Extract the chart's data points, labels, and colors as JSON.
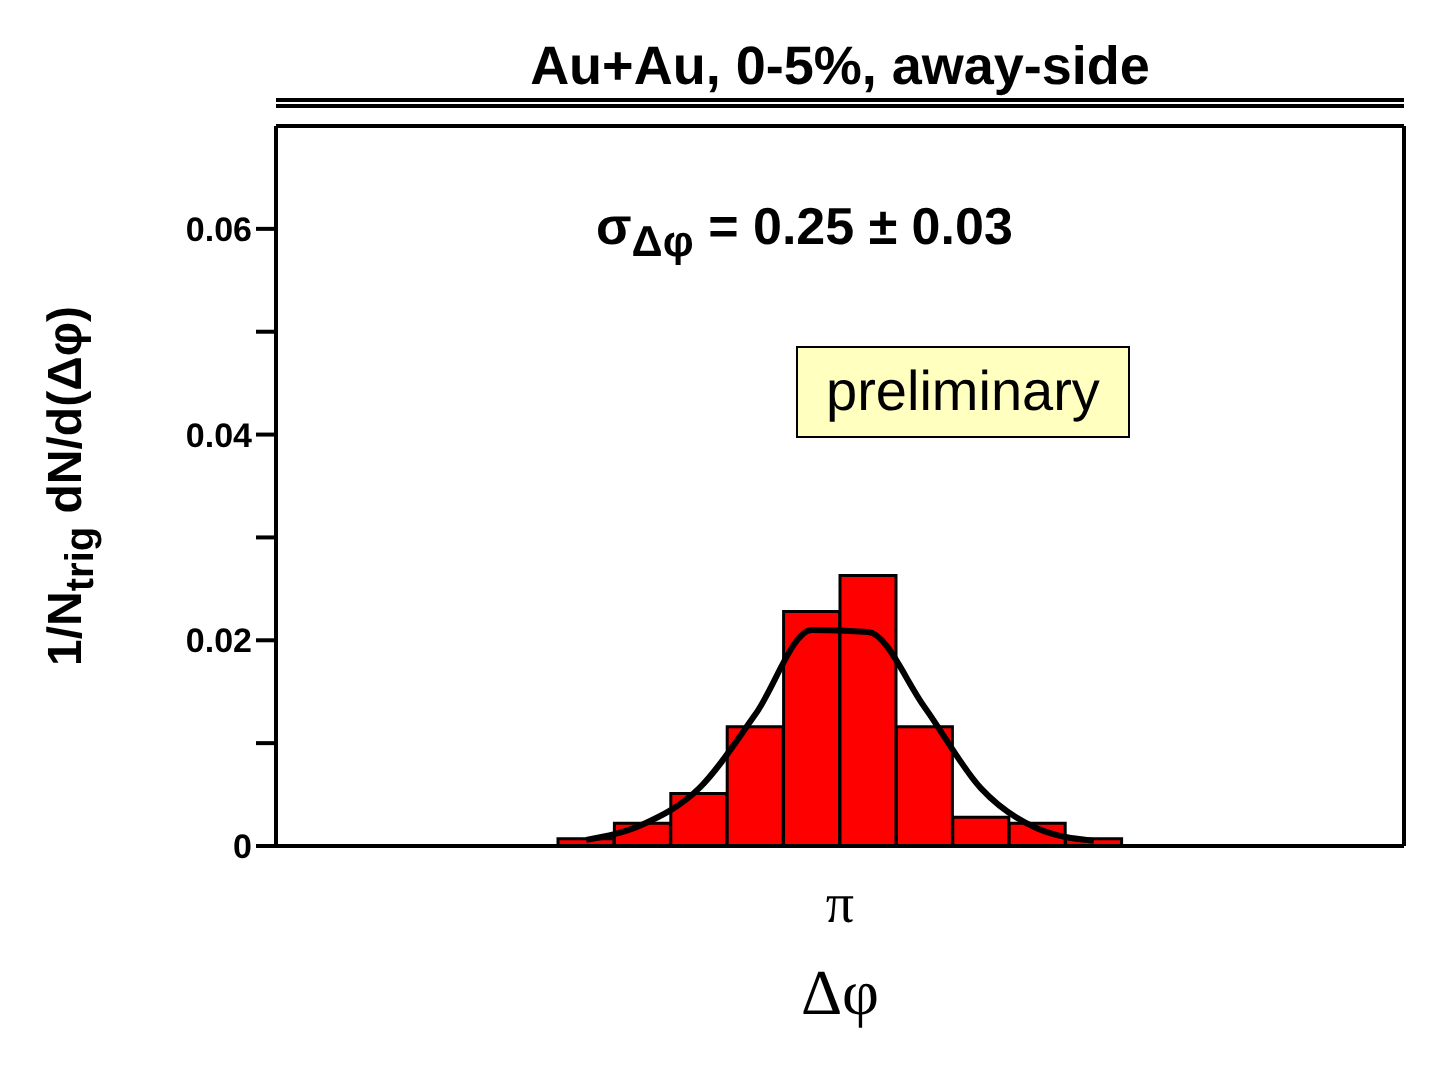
{
  "chart_data": {
    "type": "bar",
    "title": "Au+Au, 0-5%, away-side",
    "xlabel": "Δφ",
    "ylabel": "1/N$_{trig}$ dN/d(Δφ)",
    "annotations": [
      "σ$_{Δφ}$ = 0.25 ± 0.03",
      "preliminary",
      "π"
    ],
    "categories": [
      null,
      null,
      null,
      null,
      null,
      null,
      null,
      null,
      null,
      null,
      null,
      null,
      null,
      null,
      null,
      null,
      null,
      null,
      null,
      null
    ],
    "series": [
      {
        "color": "#ff0000",
        "values": [
          null,
          null,
          null,
          null,
          null,
          0.0007,
          0.0022,
          0.0051,
          0.0116,
          0.0228,
          0.0263,
          0.0116,
          0.0028,
          0.0022,
          0.0007,
          null,
          null,
          null,
          null,
          null
        ]
      },
      {
        "type": "line",
        "color": "#000000",
        "values": [
          null,
          null,
          null,
          null,
          null,
          0.0006,
          0.0021,
          0.0056,
          0.0128,
          0.021,
          0.0208,
          0.0135,
          0.0056,
          0.0017,
          0.0005,
          null,
          null,
          null,
          null,
          null
        ]
      }
    ],
    "ylim": [
      0,
      0.07
    ],
    "yticks": [
      0,
      {
        "value": 0.01,
        "label": null
      },
      0.02,
      {
        "value": 0.03,
        "label": null
      },
      0.04,
      {
        "value": 0.05,
        "label": null
      },
      0.06
    ],
    "grid": false,
    "legend": false
  }
}
